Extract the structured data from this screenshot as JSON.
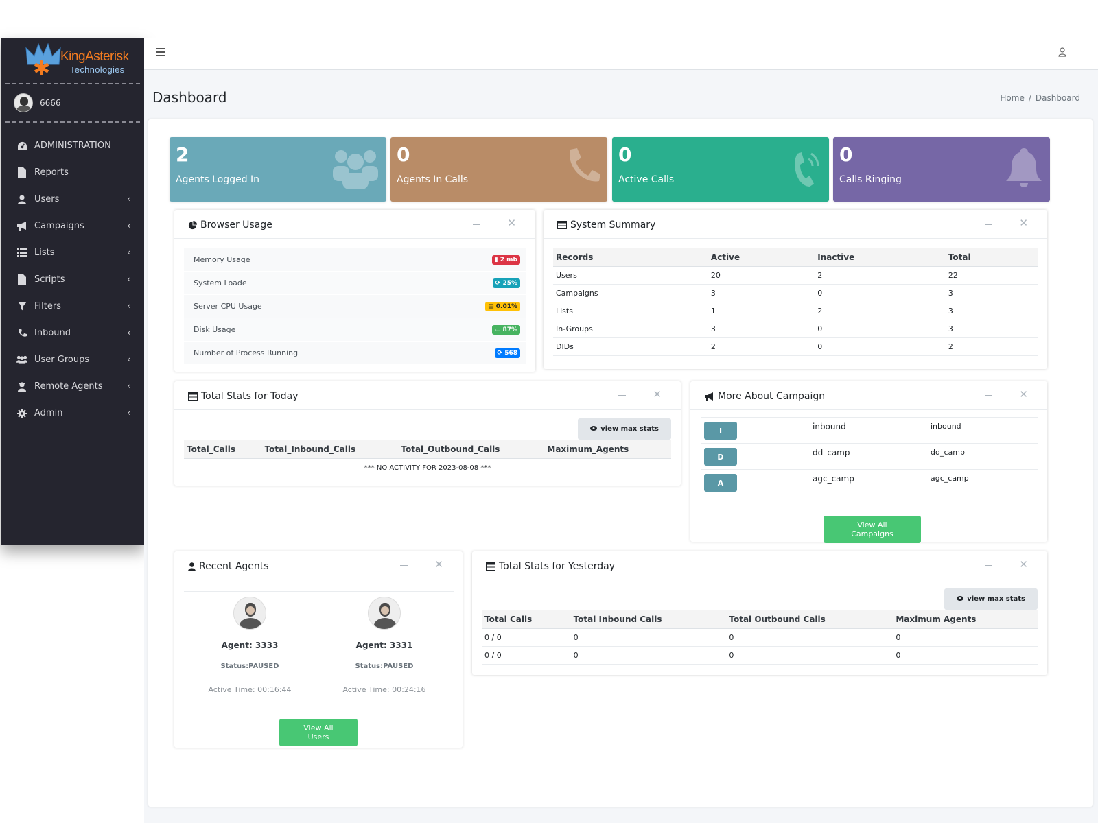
{
  "brand": {
    "name": "KingAsterisk",
    "sub": "Technologies"
  },
  "user": {
    "name": "6666"
  },
  "nav": [
    {
      "label": "ADMINISTRATION",
      "icon": "dashboard-icon",
      "chevron": false
    },
    {
      "label": "Reports",
      "icon": "file-icon",
      "chevron": false
    },
    {
      "label": "Users",
      "icon": "user-icon",
      "chevron": true
    },
    {
      "label": "Campaigns",
      "icon": "bullhorn-icon",
      "chevron": true
    },
    {
      "label": "Lists",
      "icon": "list-icon",
      "chevron": true
    },
    {
      "label": "Scripts",
      "icon": "file-icon",
      "chevron": true
    },
    {
      "label": "Filters",
      "icon": "filter-icon",
      "chevron": true
    },
    {
      "label": "Inbound",
      "icon": "phone-icon",
      "chevron": true
    },
    {
      "label": "User Groups",
      "icon": "users-icon",
      "chevron": true
    },
    {
      "label": "Remote Agents",
      "icon": "remote-agent-icon",
      "chevron": true
    },
    {
      "label": "Admin",
      "icon": "gear-icon",
      "chevron": true
    }
  ],
  "page": {
    "title": "Dashboard",
    "breadcrumb_home": "Home",
    "breadcrumb_current": "Dashboard"
  },
  "stats": [
    {
      "value": "2",
      "label": "Agents Logged In",
      "color": "#6aa9b8"
    },
    {
      "value": "0",
      "label": "Agents In Calls",
      "color": "#b98c67"
    },
    {
      "value": "0",
      "label": "Active Calls",
      "color": "#2aaf8e"
    },
    {
      "value": "0",
      "label": "Calls Ringing",
      "color": "#7667a6"
    }
  ],
  "browser_usage": {
    "title": "Browser Usage",
    "rows": [
      {
        "label": "Memory Usage",
        "value": "2 mb"
      },
      {
        "label": "System Loade",
        "value": "25%"
      },
      {
        "label": "Server CPU Usage",
        "value": "0.01%"
      },
      {
        "label": "Disk Usage",
        "value": "87%"
      },
      {
        "label": "Number of Process Running",
        "value": "568"
      }
    ]
  },
  "system_summary": {
    "title": "System Summary",
    "headers": [
      "Records",
      "Active",
      "Inactive",
      "Total"
    ],
    "rows": [
      [
        "Users",
        "20",
        "2",
        "22"
      ],
      [
        "Campaigns",
        "3",
        "0",
        "3"
      ],
      [
        "Lists",
        "1",
        "2",
        "3"
      ],
      [
        "In-Groups",
        "3",
        "0",
        "3"
      ],
      [
        "DIDs",
        "2",
        "0",
        "2"
      ]
    ]
  },
  "today": {
    "title": "Total Stats for Today",
    "button": "view max stats",
    "headers": [
      "Total_Calls",
      "Total_Inbound_Calls",
      "Total_Outbound_Calls",
      "Maximum_Agents"
    ],
    "no_activity": "*** NO ACTIVITY FOR  2023-08-08 ***"
  },
  "campaigns": {
    "title": "More About Campaign",
    "rows": [
      {
        "letter": "I",
        "name": "inbound",
        "id": "inbound"
      },
      {
        "letter": "D",
        "name": "dd_camp",
        "id": "dd_camp"
      },
      {
        "letter": "A",
        "name": "agc_camp",
        "id": "agc_camp"
      }
    ],
    "button": "View All Campaigns"
  },
  "agents": {
    "title": "Recent Agents",
    "items": [
      {
        "name": "Agent: 3333",
        "status": "Status:PAUSED",
        "time": "Active Time: 00:16:44"
      },
      {
        "name": "Agent: 3331",
        "status": "Status:PAUSED",
        "time": "Active Time: 00:24:16"
      }
    ],
    "button": "View All Users"
  },
  "yesterday": {
    "title": "Total Stats for Yesterday",
    "button": "view max stats",
    "headers": [
      "Total Calls",
      "Total Inbound Calls",
      "Total Outbound Calls",
      "Maximum Agents"
    ],
    "rows": [
      [
        "0 / 0",
        "0",
        "0",
        "0"
      ],
      [
        "0 / 0",
        "0",
        "0",
        "0"
      ]
    ]
  }
}
